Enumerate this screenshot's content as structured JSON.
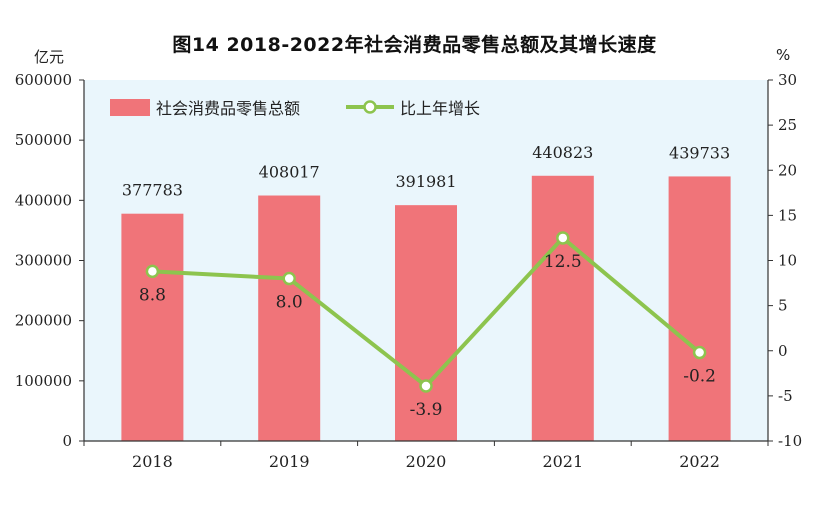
{
  "title": "图14   2018-2022年社会消费品零售总额及其增长速度",
  "units": {
    "left": "亿元",
    "right": "%"
  },
  "colors": {
    "bar": "#F07479",
    "line": "#8DC44E",
    "plot_bg": "#EAF6FC",
    "axis": "#333333"
  },
  "chart_data": {
    "type": "bar+line",
    "categories": [
      "2018",
      "2019",
      "2020",
      "2021",
      "2022"
    ],
    "series": [
      {
        "name": "社会消费品零售总额",
        "kind": "bar",
        "axis": "left",
        "values": [
          377783,
          408017,
          391981,
          440823,
          439733
        ],
        "labels": [
          "377783",
          "408017",
          "391981",
          "440823",
          "439733"
        ]
      },
      {
        "name": "比上年增长",
        "kind": "line",
        "axis": "right",
        "values": [
          8.8,
          8.0,
          -3.9,
          12.5,
          -0.2
        ],
        "labels": [
          "8.8",
          "8.0",
          "-3.9",
          "12.5",
          "-0.2"
        ]
      }
    ],
    "y_left": {
      "min": 0,
      "max": 600000,
      "ticks": [
        "0",
        "100000",
        "200000",
        "300000",
        "400000",
        "500000",
        "600000"
      ]
    },
    "y_right": {
      "min": -10,
      "max": 30,
      "ticks": [
        "-10",
        "-5",
        "0",
        "5",
        "10",
        "15",
        "20",
        "25",
        "30"
      ]
    },
    "legend": "top-left",
    "grid": false
  }
}
